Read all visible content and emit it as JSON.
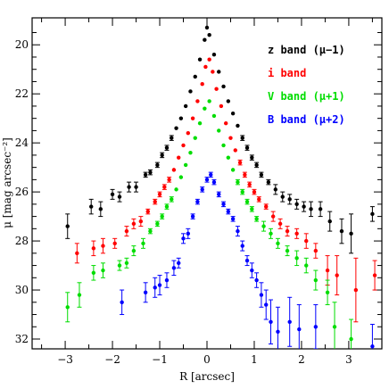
{
  "chart_data": {
    "type": "scatter",
    "xlabel": "R [arcsec]",
    "ylabel": "μ [mag arcsec⁻²]",
    "xlim": [
      -3.7,
      3.7
    ],
    "ylim": [
      32.4,
      18.9
    ],
    "y_inverted": true,
    "xticks_major": [
      -3,
      -2,
      -1,
      0,
      1,
      2,
      3
    ],
    "xtick_labels": [
      "−3",
      "−2",
      "−1",
      "0",
      "1",
      "2",
      "3"
    ],
    "yticks_major": [
      20,
      22,
      24,
      26,
      28,
      30,
      32
    ],
    "ytick_labels": [
      "20",
      "22",
      "24",
      "26",
      "28",
      "30",
      "32"
    ],
    "legend_position": "top-right",
    "series": [
      {
        "name": "z band (μ−1)",
        "color": "#000000",
        "points": [
          {
            "x": -2.95,
            "y": 27.4,
            "err": 0.5
          },
          {
            "x": -2.45,
            "y": 26.6,
            "err": 0.3
          },
          {
            "x": -2.25,
            "y": 26.7,
            "err": 0.3
          },
          {
            "x": -2.0,
            "y": 26.1,
            "err": 0.2
          },
          {
            "x": -1.85,
            "y": 26.2,
            "err": 0.2
          },
          {
            "x": -1.65,
            "y": 25.8,
            "err": 0.2
          },
          {
            "x": -1.5,
            "y": 25.8,
            "err": 0.2
          },
          {
            "x": -1.3,
            "y": 25.3,
            "err": 0.1
          },
          {
            "x": -1.2,
            "y": 25.2,
            "err": 0.1
          },
          {
            "x": -1.05,
            "y": 24.9,
            "err": 0.1
          },
          {
            "x": -0.95,
            "y": 24.5,
            "err": 0.1
          },
          {
            "x": -0.85,
            "y": 24.2,
            "err": 0.1
          },
          {
            "x": -0.75,
            "y": 23.8,
            "err": 0.1
          },
          {
            "x": -0.65,
            "y": 23.4,
            "err": 0.05
          },
          {
            "x": -0.55,
            "y": 23.0,
            "err": 0.05
          },
          {
            "x": -0.45,
            "y": 22.5,
            "err": 0.05
          },
          {
            "x": -0.35,
            "y": 21.9,
            "err": 0.05
          },
          {
            "x": -0.25,
            "y": 21.3,
            "err": 0.05
          },
          {
            "x": -0.15,
            "y": 20.6,
            "err": 0.05
          },
          {
            "x": -0.05,
            "y": 19.8,
            "err": 0.05
          },
          {
            "x": 0.0,
            "y": 19.3,
            "err": 0.05
          },
          {
            "x": 0.05,
            "y": 19.6,
            "err": 0.05
          },
          {
            "x": 0.15,
            "y": 20.4,
            "err": 0.05
          },
          {
            "x": 0.25,
            "y": 21.1,
            "err": 0.05
          },
          {
            "x": 0.35,
            "y": 21.7,
            "err": 0.05
          },
          {
            "x": 0.45,
            "y": 22.3,
            "err": 0.05
          },
          {
            "x": 0.55,
            "y": 22.8,
            "err": 0.05
          },
          {
            "x": 0.65,
            "y": 23.3,
            "err": 0.05
          },
          {
            "x": 0.75,
            "y": 23.8,
            "err": 0.1
          },
          {
            "x": 0.85,
            "y": 24.2,
            "err": 0.1
          },
          {
            "x": 0.95,
            "y": 24.6,
            "err": 0.1
          },
          {
            "x": 1.05,
            "y": 24.9,
            "err": 0.1
          },
          {
            "x": 1.15,
            "y": 25.3,
            "err": 0.1
          },
          {
            "x": 1.3,
            "y": 25.6,
            "err": 0.1
          },
          {
            "x": 1.45,
            "y": 25.9,
            "err": 0.2
          },
          {
            "x": 1.6,
            "y": 26.2,
            "err": 0.2
          },
          {
            "x": 1.75,
            "y": 26.3,
            "err": 0.2
          },
          {
            "x": 1.9,
            "y": 26.5,
            "err": 0.2
          },
          {
            "x": 2.05,
            "y": 26.6,
            "err": 0.2
          },
          {
            "x": 2.2,
            "y": 26.7,
            "err": 0.3
          },
          {
            "x": 2.4,
            "y": 26.7,
            "err": 0.3
          },
          {
            "x": 2.6,
            "y": 27.2,
            "err": 0.4
          },
          {
            "x": 2.85,
            "y": 27.6,
            "err": 0.5
          },
          {
            "x": 3.05,
            "y": 27.7,
            "err": 0.8
          },
          {
            "x": 3.5,
            "y": 26.9,
            "err": 0.3
          }
        ]
      },
      {
        "name": "i band",
        "color": "#ff0000",
        "points": [
          {
            "x": -2.75,
            "y": 28.5,
            "err": 0.4
          },
          {
            "x": -2.4,
            "y": 28.3,
            "err": 0.3
          },
          {
            "x": -2.2,
            "y": 28.2,
            "err": 0.3
          },
          {
            "x": -1.95,
            "y": 28.1,
            "err": 0.2
          },
          {
            "x": -1.7,
            "y": 27.6,
            "err": 0.2
          },
          {
            "x": -1.55,
            "y": 27.3,
            "err": 0.2
          },
          {
            "x": -1.4,
            "y": 27.2,
            "err": 0.2
          },
          {
            "x": -1.25,
            "y": 26.8,
            "err": 0.1
          },
          {
            "x": -1.1,
            "y": 26.4,
            "err": 0.1
          },
          {
            "x": -1.0,
            "y": 26.1,
            "err": 0.1
          },
          {
            "x": -0.9,
            "y": 25.8,
            "err": 0.1
          },
          {
            "x": -0.8,
            "y": 25.5,
            "err": 0.1
          },
          {
            "x": -0.7,
            "y": 25.1,
            "err": 0.05
          },
          {
            "x": -0.6,
            "y": 24.6,
            "err": 0.05
          },
          {
            "x": -0.5,
            "y": 24.1,
            "err": 0.05
          },
          {
            "x": -0.4,
            "y": 23.6,
            "err": 0.05
          },
          {
            "x": -0.3,
            "y": 23.0,
            "err": 0.05
          },
          {
            "x": -0.2,
            "y": 22.3,
            "err": 0.05
          },
          {
            "x": -0.1,
            "y": 21.6,
            "err": 0.05
          },
          {
            "x": -0.03,
            "y": 20.9,
            "err": 0.05
          },
          {
            "x": 0.05,
            "y": 20.6,
            "err": 0.05
          },
          {
            "x": 0.12,
            "y": 21.1,
            "err": 0.05
          },
          {
            "x": 0.2,
            "y": 21.8,
            "err": 0.05
          },
          {
            "x": 0.3,
            "y": 22.5,
            "err": 0.05
          },
          {
            "x": 0.4,
            "y": 23.2,
            "err": 0.05
          },
          {
            "x": 0.5,
            "y": 23.8,
            "err": 0.05
          },
          {
            "x": 0.6,
            "y": 24.3,
            "err": 0.05
          },
          {
            "x": 0.7,
            "y": 24.8,
            "err": 0.1
          },
          {
            "x": 0.8,
            "y": 25.3,
            "err": 0.1
          },
          {
            "x": 0.9,
            "y": 25.7,
            "err": 0.1
          },
          {
            "x": 1.0,
            "y": 26.0,
            "err": 0.1
          },
          {
            "x": 1.1,
            "y": 26.3,
            "err": 0.1
          },
          {
            "x": 1.25,
            "y": 26.6,
            "err": 0.1
          },
          {
            "x": 1.4,
            "y": 27.0,
            "err": 0.2
          },
          {
            "x": 1.55,
            "y": 27.3,
            "err": 0.2
          },
          {
            "x": 1.7,
            "y": 27.6,
            "err": 0.2
          },
          {
            "x": 1.9,
            "y": 27.7,
            "err": 0.2
          },
          {
            "x": 2.1,
            "y": 28.0,
            "err": 0.3
          },
          {
            "x": 2.3,
            "y": 28.4,
            "err": 0.3
          },
          {
            "x": 2.55,
            "y": 29.2,
            "err": 0.6
          },
          {
            "x": 2.75,
            "y": 29.4,
            "err": 0.8
          },
          {
            "x": 3.15,
            "y": 30.0,
            "err": 1.3
          },
          {
            "x": 3.55,
            "y": 29.4,
            "err": 0.6
          }
        ]
      },
      {
        "name": "V band (μ+1)",
        "color": "#00dd00",
        "points": [
          {
            "x": -2.95,
            "y": 30.7,
            "err": 0.6
          },
          {
            "x": -2.7,
            "y": 30.2,
            "err": 0.5
          },
          {
            "x": -2.4,
            "y": 29.3,
            "err": 0.3
          },
          {
            "x": -2.2,
            "y": 29.2,
            "err": 0.3
          },
          {
            "x": -1.85,
            "y": 29.0,
            "err": 0.2
          },
          {
            "x": -1.7,
            "y": 28.9,
            "err": 0.2
          },
          {
            "x": -1.55,
            "y": 28.4,
            "err": 0.2
          },
          {
            "x": -1.35,
            "y": 28.1,
            "err": 0.2
          },
          {
            "x": -1.2,
            "y": 27.6,
            "err": 0.1
          },
          {
            "x": -1.05,
            "y": 27.3,
            "err": 0.1
          },
          {
            "x": -0.95,
            "y": 27.0,
            "err": 0.1
          },
          {
            "x": -0.85,
            "y": 26.6,
            "err": 0.1
          },
          {
            "x": -0.75,
            "y": 26.3,
            "err": 0.1
          },
          {
            "x": -0.65,
            "y": 25.9,
            "err": 0.05
          },
          {
            "x": -0.55,
            "y": 25.4,
            "err": 0.05
          },
          {
            "x": -0.45,
            "y": 24.9,
            "err": 0.05
          },
          {
            "x": -0.35,
            "y": 24.4,
            "err": 0.05
          },
          {
            "x": -0.25,
            "y": 23.8,
            "err": 0.05
          },
          {
            "x": -0.15,
            "y": 23.2,
            "err": 0.05
          },
          {
            "x": -0.05,
            "y": 22.6,
            "err": 0.05
          },
          {
            "x": 0.05,
            "y": 22.3,
            "err": 0.05
          },
          {
            "x": 0.15,
            "y": 22.9,
            "err": 0.05
          },
          {
            "x": 0.25,
            "y": 23.5,
            "err": 0.05
          },
          {
            "x": 0.35,
            "y": 24.1,
            "err": 0.05
          },
          {
            "x": 0.45,
            "y": 24.6,
            "err": 0.05
          },
          {
            "x": 0.55,
            "y": 25.1,
            "err": 0.05
          },
          {
            "x": 0.65,
            "y": 25.6,
            "err": 0.1
          },
          {
            "x": 0.75,
            "y": 26.0,
            "err": 0.1
          },
          {
            "x": 0.85,
            "y": 26.4,
            "err": 0.1
          },
          {
            "x": 0.95,
            "y": 26.7,
            "err": 0.1
          },
          {
            "x": 1.05,
            "y": 27.1,
            "err": 0.1
          },
          {
            "x": 1.2,
            "y": 27.4,
            "err": 0.2
          },
          {
            "x": 1.35,
            "y": 27.7,
            "err": 0.2
          },
          {
            "x": 1.5,
            "y": 28.1,
            "err": 0.2
          },
          {
            "x": 1.7,
            "y": 28.4,
            "err": 0.2
          },
          {
            "x": 1.9,
            "y": 28.7,
            "err": 0.3
          },
          {
            "x": 2.1,
            "y": 29.0,
            "err": 0.3
          },
          {
            "x": 2.3,
            "y": 29.6,
            "err": 0.4
          },
          {
            "x": 2.55,
            "y": 30.1,
            "err": 0.5
          },
          {
            "x": 2.7,
            "y": 31.5,
            "err": 1.0
          },
          {
            "x": 3.05,
            "y": 32.0,
            "err": 0.8
          }
        ]
      },
      {
        "name": "B band (μ+2)",
        "color": "#0000ff",
        "points": [
          {
            "x": -1.8,
            "y": 30.5,
            "err": 0.5
          },
          {
            "x": -1.3,
            "y": 30.1,
            "err": 0.4
          },
          {
            "x": -1.1,
            "y": 29.9,
            "err": 0.4
          },
          {
            "x": -1.0,
            "y": 29.8,
            "err": 0.4
          },
          {
            "x": -0.85,
            "y": 29.6,
            "err": 0.3
          },
          {
            "x": -0.7,
            "y": 29.1,
            "err": 0.3
          },
          {
            "x": -0.6,
            "y": 28.9,
            "err": 0.2
          },
          {
            "x": -0.5,
            "y": 27.9,
            "err": 0.2
          },
          {
            "x": -0.4,
            "y": 27.7,
            "err": 0.2
          },
          {
            "x": -0.3,
            "y": 27.0,
            "err": 0.1
          },
          {
            "x": -0.2,
            "y": 26.4,
            "err": 0.1
          },
          {
            "x": -0.1,
            "y": 25.9,
            "err": 0.1
          },
          {
            "x": 0.0,
            "y": 25.5,
            "err": 0.1
          },
          {
            "x": 0.08,
            "y": 25.3,
            "err": 0.1
          },
          {
            "x": 0.15,
            "y": 25.6,
            "err": 0.1
          },
          {
            "x": 0.25,
            "y": 26.1,
            "err": 0.1
          },
          {
            "x": 0.35,
            "y": 26.5,
            "err": 0.1
          },
          {
            "x": 0.45,
            "y": 26.8,
            "err": 0.1
          },
          {
            "x": 0.55,
            "y": 27.1,
            "err": 0.1
          },
          {
            "x": 0.65,
            "y": 27.6,
            "err": 0.2
          },
          {
            "x": 0.75,
            "y": 28.2,
            "err": 0.2
          },
          {
            "x": 0.85,
            "y": 28.8,
            "err": 0.2
          },
          {
            "x": 0.95,
            "y": 29.2,
            "err": 0.3
          },
          {
            "x": 1.05,
            "y": 29.6,
            "err": 0.3
          },
          {
            "x": 1.15,
            "y": 30.2,
            "err": 0.5
          },
          {
            "x": 1.25,
            "y": 30.6,
            "err": 0.6
          },
          {
            "x": 1.35,
            "y": 31.3,
            "err": 0.9
          },
          {
            "x": 1.5,
            "y": 31.7,
            "err": 1.0
          },
          {
            "x": 1.75,
            "y": 31.3,
            "err": 1.0
          },
          {
            "x": 1.95,
            "y": 31.6,
            "err": 1.0
          },
          {
            "x": 2.3,
            "y": 31.5,
            "err": 0.9
          },
          {
            "x": 3.5,
            "y": 32.3,
            "err": 0.9
          }
        ]
      }
    ]
  }
}
